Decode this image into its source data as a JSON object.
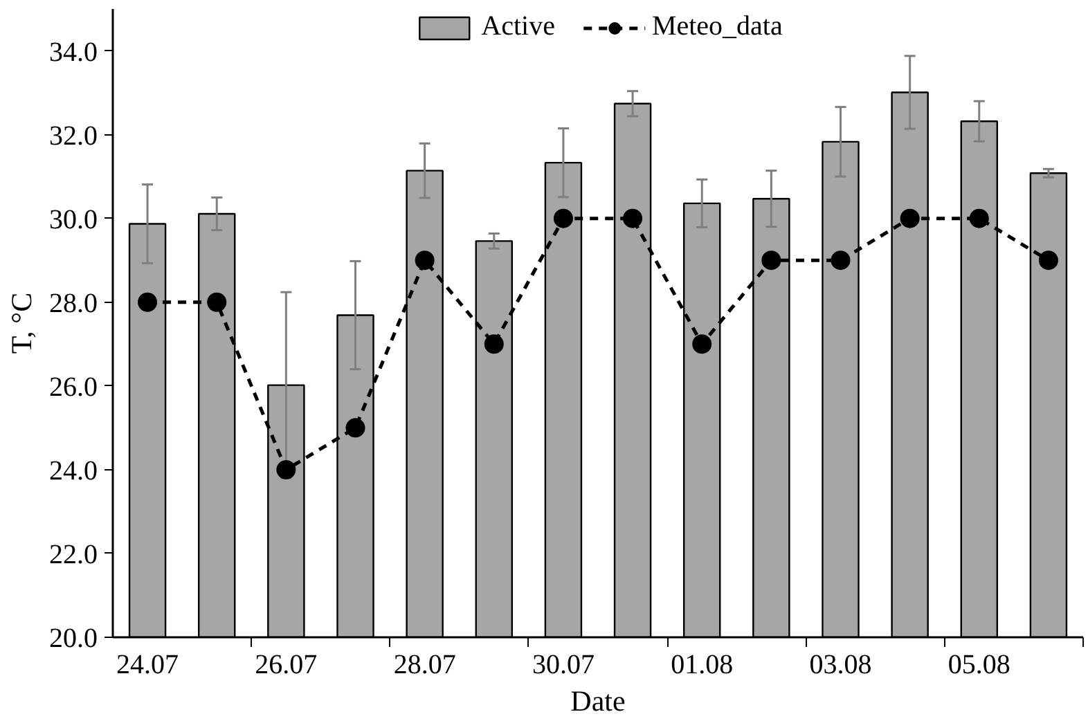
{
  "chart_data": {
    "type": "bar",
    "xlabel": "Date",
    "ylabel": "T, °C",
    "categories": [
      "24.07",
      null,
      "26.07",
      null,
      "28.07",
      null,
      "30.07",
      null,
      "01.08",
      null,
      "03.08",
      null,
      "05.08",
      null
    ],
    "series": [
      {
        "name": "Active",
        "color": "#a6a6a6",
        "values": [
          29.87,
          30.11,
          26.02,
          27.69,
          31.14,
          29.46,
          31.33,
          32.74,
          30.36,
          30.47,
          31.83,
          33.01,
          32.32,
          31.08
        ],
        "errors": [
          0.94,
          0.39,
          2.22,
          1.29,
          0.65,
          0.18,
          0.82,
          0.3,
          0.57,
          0.67,
          0.83,
          0.87,
          0.48,
          0.1
        ]
      },
      {
        "name": "Meteo_data",
        "type": "line",
        "color": "#000000",
        "marker": "circle",
        "line_style": "dashed",
        "values": [
          28,
          28,
          24,
          25,
          29,
          27,
          30,
          30,
          27,
          29,
          29,
          30,
          30,
          29
        ]
      }
    ],
    "ylim": [
      20,
      35
    ],
    "yticks": [
      {
        "value": 20,
        "label": "20.0"
      },
      {
        "value": 22,
        "label": "22.0"
      },
      {
        "value": 24,
        "label": "24.0"
      },
      {
        "value": 26,
        "label": "26.0"
      },
      {
        "value": 28,
        "label": "28.0"
      },
      {
        "value": 30,
        "label": "30.0"
      },
      {
        "value": 32,
        "label": "32.0"
      },
      {
        "value": 34,
        "label": "34.0"
      }
    ],
    "grid": false,
    "legend": "top"
  }
}
